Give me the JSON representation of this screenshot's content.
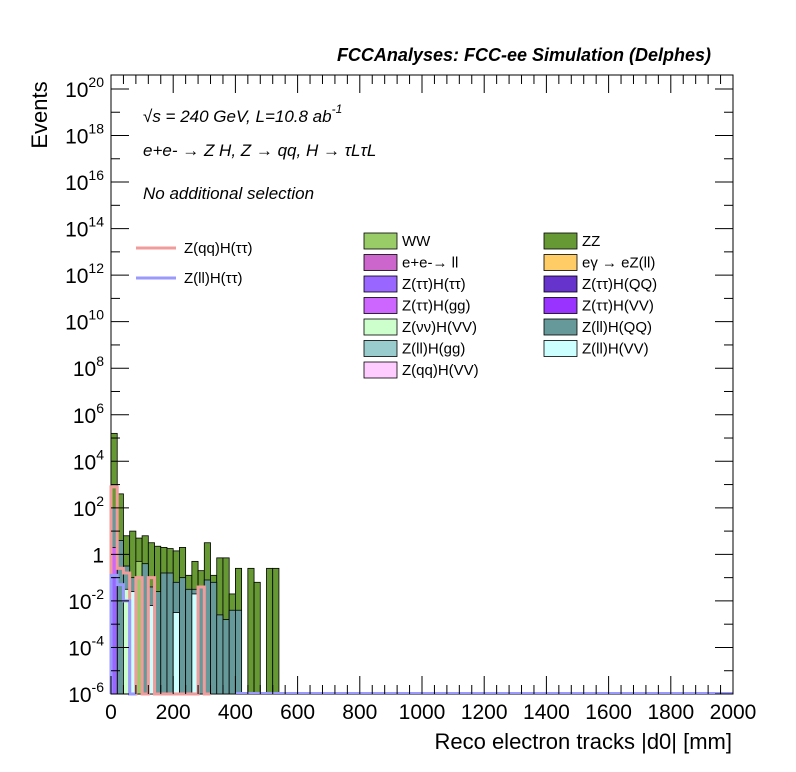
{
  "chart_data": {
    "type": "bar",
    "title": "FCCAnalyses: FCC-ee Simulation (Delphes)",
    "xlabel": "Reco electron tracks |d0| [mm]",
    "ylabel": "Events",
    "xlim": [
      0,
      2000
    ],
    "ylim_log10": [
      -6,
      20.6
    ],
    "y_scale": "log",
    "grid": false,
    "x_ticks": [
      "0",
      "200",
      "400",
      "600",
      "800",
      "1000",
      "1200",
      "1400",
      "1600",
      "1800",
      "2000"
    ],
    "y_ticks": [
      {
        "base": "10",
        "exp": "20"
      },
      {
        "base": "10",
        "exp": "18"
      },
      {
        "base": "10",
        "exp": "16"
      },
      {
        "base": "10",
        "exp": "14"
      },
      {
        "base": "10",
        "exp": "12"
      },
      {
        "base": "10",
        "exp": "10"
      },
      {
        "base": "10",
        "exp": "8"
      },
      {
        "base": "10",
        "exp": "6"
      },
      {
        "base": "10",
        "exp": "4"
      },
      {
        "base": "10",
        "exp": "2"
      },
      {
        "base": "1",
        "exp": ""
      },
      {
        "base": "10",
        "exp": "-2"
      },
      {
        "base": "10",
        "exp": "-4"
      },
      {
        "base": "10",
        "exp": "-6"
      }
    ],
    "annotations": {
      "energy": "√s = 240 GeV, L=10.8 ab",
      "energy_exp": "-1",
      "process": "e+e- → Z H, Z → qq, H → τLτL",
      "selection": "No additional selection"
    },
    "legend_lines": [
      {
        "name": "Z(qq)H(ττ)",
        "color": "#f29b9b"
      },
      {
        "name": "Z(ll)H(ττ)",
        "color": "#9999ff"
      }
    ],
    "legend_fills": [
      {
        "name": "WW",
        "color": "#99cc66"
      },
      {
        "name": "ZZ",
        "color": "#669933"
      },
      {
        "name": "e+e-→ ll",
        "color": "#cc66cc"
      },
      {
        "name": "eγ → eZ(ll)",
        "color": "#ffcc66"
      },
      {
        "name": "Z(ττ)H(ττ)",
        "color": "#9966ff"
      },
      {
        "name": "Z(ττ)H(QQ)",
        "color": "#6633cc"
      },
      {
        "name": "Z(ττ)H(gg)",
        "color": "#cc66ff"
      },
      {
        "name": "Z(ττ)H(VV)",
        "color": "#9933ff"
      },
      {
        "name": "Z(νν)H(VV)",
        "color": "#ccffcc"
      },
      {
        "name": "Z(ll)H(QQ)",
        "color": "#669999"
      },
      {
        "name": "Z(ll)H(gg)",
        "color": "#99cccc"
      },
      {
        "name": "Z(ll)H(VV)",
        "color": "#ccffff"
      },
      {
        "name": "Z(qq)H(VV)",
        "color": "#ffccff"
      }
    ],
    "bin_width": 20,
    "stack": [
      {
        "x": 0,
        "log10": 5.2,
        "color": "#669933"
      },
      {
        "x": 20,
        "log10": 2.6,
        "color": "#669933"
      },
      {
        "x": 40,
        "log10": 0.8,
        "color": "#669933"
      },
      {
        "x": 60,
        "log10": 1.0,
        "color": "#669933"
      },
      {
        "x": 80,
        "log10": 0.7,
        "color": "#669933"
      },
      {
        "x": 100,
        "log10": 0.8,
        "color": "#669933"
      },
      {
        "x": 120,
        "log10": 0.5,
        "color": "#669933"
      },
      {
        "x": 140,
        "log10": 0.35,
        "color": "#669933"
      },
      {
        "x": 160,
        "log10": 0.3,
        "color": "#669933"
      },
      {
        "x": 180,
        "log10": 0.25,
        "color": "#669933"
      },
      {
        "x": 200,
        "log10": 0.15,
        "color": "#669933"
      },
      {
        "x": 220,
        "log10": 0.3,
        "color": "#669933"
      },
      {
        "x": 240,
        "log10": -0.9,
        "color": "#669933"
      },
      {
        "x": 260,
        "log10": -0.3,
        "color": "#669933"
      },
      {
        "x": 280,
        "log10": -0.7,
        "color": "#669933"
      },
      {
        "x": 300,
        "log10": 0.5,
        "color": "#669933"
      },
      {
        "x": 320,
        "log10": -0.9,
        "color": "#669933"
      },
      {
        "x": 340,
        "log10": -0.15,
        "color": "#669933"
      },
      {
        "x": 360,
        "log10": -0.15,
        "color": "#669933"
      },
      {
        "x": 380,
        "log10": -1.7,
        "color": "#669933"
      },
      {
        "x": 400,
        "log10": -0.6,
        "color": "#669933"
      },
      {
        "x": 420,
        "log10": -6,
        "color": "#669933"
      },
      {
        "x": 440,
        "log10": -0.6,
        "color": "#669933"
      },
      {
        "x": 460,
        "log10": -1.2,
        "color": "#669933"
      },
      {
        "x": 480,
        "log10": -6,
        "color": "#669933"
      },
      {
        "x": 500,
        "log10": -0.6,
        "color": "#669933"
      },
      {
        "x": 520,
        "log10": -0.6,
        "color": "#669933"
      }
    ],
    "overlays": [
      {
        "x": 0,
        "log10": 2.0,
        "color": "#669999"
      },
      {
        "x": 20,
        "log10": 0.6,
        "color": "#669999"
      },
      {
        "x": 40,
        "log10": -0.5,
        "color": "#669999"
      },
      {
        "x": 60,
        "log10": -1.0,
        "color": "#669999"
      },
      {
        "x": 80,
        "log10": -0.3,
        "color": "#99cc66"
      },
      {
        "x": 100,
        "log10": -0.4,
        "color": "#669999"
      },
      {
        "x": 120,
        "log10": -1.4,
        "color": "#669999"
      },
      {
        "x": 140,
        "log10": -1.6,
        "color": "#669999"
      },
      {
        "x": 160,
        "log10": -0.8,
        "color": "#669999"
      },
      {
        "x": 180,
        "log10": -0.8,
        "color": "#669999"
      },
      {
        "x": 200,
        "log10": -1.2,
        "color": "#669999"
      },
      {
        "x": 220,
        "log10": -1.0,
        "color": "#669999"
      },
      {
        "x": 240,
        "log10": -1.5,
        "color": "#669999"
      },
      {
        "x": 260,
        "log10": -1.5,
        "color": "#669999"
      },
      {
        "x": 280,
        "log10": -1.4,
        "color": "#669999"
      },
      {
        "x": 300,
        "log10": -1.1,
        "color": "#669999"
      },
      {
        "x": 320,
        "log10": -1.2,
        "color": "#669999"
      },
      {
        "x": 340,
        "log10": -2.6,
        "color": "#669999"
      },
      {
        "x": 360,
        "log10": -2.8,
        "color": "#669999"
      },
      {
        "x": 380,
        "log10": -2.4,
        "color": "#669999"
      },
      {
        "x": 400,
        "log10": -2.4,
        "color": "#669999"
      },
      {
        "x": 0,
        "log10": 0.3,
        "color": "#cc66ff"
      },
      {
        "x": 0,
        "log10": -1.0,
        "color": "#9966ff"
      },
      {
        "x": 40,
        "log10": -1.5,
        "color": "#ccffcc"
      },
      {
        "x": 60,
        "log10": -1.6,
        "color": "#ccffff"
      },
      {
        "x": 120,
        "log10": -2.2,
        "color": "#ccffff"
      },
      {
        "x": 200,
        "log10": -2.5,
        "color": "#ccffff"
      },
      {
        "x": 260,
        "log10": -1.7,
        "color": "#ccffff"
      }
    ],
    "line_zqq": [
      {
        "x": 0,
        "log10": 2.9
      },
      {
        "x": 20,
        "log10": -0.6
      },
      {
        "x": 40,
        "log10": -0.8
      },
      {
        "x": 60,
        "log10": -6
      },
      {
        "x": 80,
        "log10": -1.0
      },
      {
        "x": 100,
        "log10": -6
      },
      {
        "x": 120,
        "log10": -1.0
      },
      {
        "x": 140,
        "log10": -6
      },
      {
        "x": 160,
        "log10": -6
      },
      {
        "x": 180,
        "log10": -6
      },
      {
        "x": 200,
        "log10": -6
      },
      {
        "x": 220,
        "log10": -6
      },
      {
        "x": 240,
        "log10": -6
      },
      {
        "x": 260,
        "log10": -6
      },
      {
        "x": 280,
        "log10": -1.4
      },
      {
        "x": 300,
        "log10": -6
      }
    ],
    "line_zll": [
      {
        "x": 0,
        "log10": -0.9
      },
      {
        "x": 20,
        "log10": -1.3
      },
      {
        "x": 40,
        "log10": -2.0
      },
      {
        "x": 60,
        "log10": -6
      }
    ]
  }
}
